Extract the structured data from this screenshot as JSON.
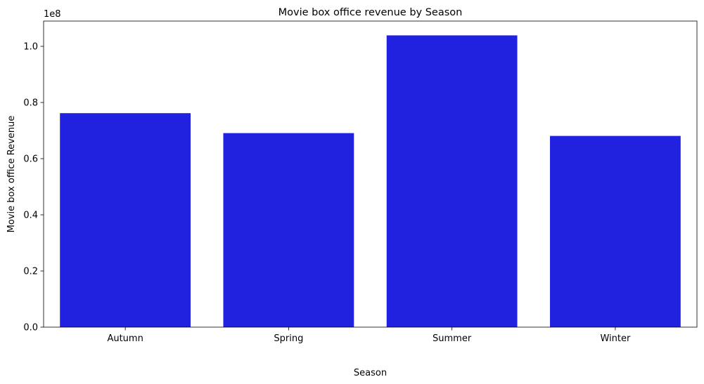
{
  "chart_data": {
    "type": "bar",
    "title": "Movie box office revenue by Season",
    "xlabel": "Season",
    "ylabel": "Movie box office Revenue",
    "y_offset_label": "1e8",
    "categories": [
      "Autumn",
      "Spring",
      "Summer",
      "Winter"
    ],
    "values": [
      76200000,
      69100000,
      103900000,
      68100000
    ],
    "ylim": [
      0,
      109000000
    ],
    "yticks": [
      0,
      20000000,
      40000000,
      60000000,
      80000000,
      100000000
    ],
    "ytick_labels": [
      "0.0",
      "0.2",
      "0.4",
      "0.6",
      "0.8",
      "1.0"
    ],
    "bar_color": "#2121e0",
    "grid": false,
    "legend": "none"
  }
}
